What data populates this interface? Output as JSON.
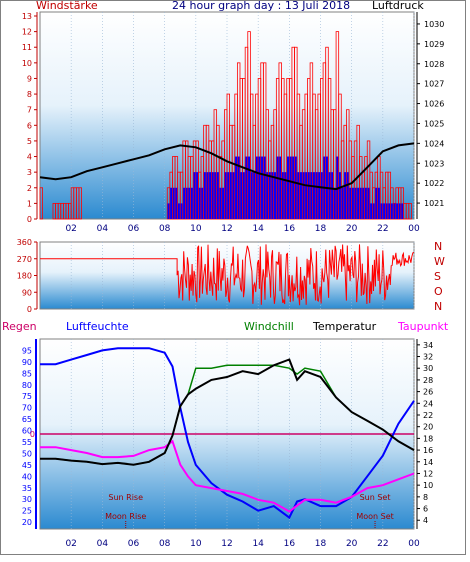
{
  "header": {
    "windstaerke": "Windstärke",
    "title": "24 hour graph day : 13 Juli 2018",
    "luftdruck": "Luftdruck",
    "regen": "Regen",
    "luftfeuchte": "Luftfeuchte",
    "windchill": "Windchill",
    "temperatur": "Temperatur",
    "taupunkt": "Taupunkt"
  },
  "colors": {
    "wind_axis": "#c00000",
    "wind_bars": "#ff0000",
    "gust_bars": "#0000ff",
    "pressure_line": "#000000",
    "direction_line": "#ff0000",
    "humidity_line": "#0000ff",
    "temperature_line": "#000000",
    "windchill_line": "#008000",
    "dewpoint_line": "#ff00ff",
    "rain_zero_line": "#cc0066",
    "title_color": "#000080"
  },
  "chart_data": [
    {
      "type": "bar",
      "name": "wind",
      "x_ticks": [
        "02",
        "04",
        "06",
        "08",
        "10",
        "12",
        "14",
        "16",
        "18",
        "20",
        "22",
        "00"
      ],
      "y_left_ticks": [
        "0",
        "1",
        "2",
        "3",
        "4",
        "5",
        "6",
        "7",
        "8",
        "9",
        "10",
        "11",
        "12",
        "13"
      ],
      "ylim_left": [
        0,
        13
      ],
      "y_right_ticks": [
        "1021",
        "1022",
        "1023",
        "1024",
        "1025",
        "1026",
        "1027",
        "1028",
        "1029",
        "1030"
      ],
      "ylim_right": [
        1020.2,
        1030.6
      ],
      "wind_hours": [
        0.0,
        0.2,
        2.5,
        2.6,
        8.0,
        8.1,
        8.5,
        9.0,
        9.2,
        9.5,
        10.0,
        10.2,
        10.5,
        11.0,
        11.2,
        11.5,
        12.0,
        12.3,
        12.6,
        13.0,
        13.3,
        13.6,
        14.0,
        14.3,
        14.6,
        15.0,
        15.3,
        15.6,
        16.0,
        16.3,
        16.6,
        17.0,
        17.3,
        17.6,
        18.0,
        18.3,
        18.6,
        18.8,
        19.0,
        19.3,
        19.6,
        20.0,
        20.3,
        20.6,
        21.0,
        21.3,
        21.6,
        22.0,
        22.3,
        22.6,
        23.0,
        23.5,
        24.0
      ],
      "wind_values": [
        2,
        0,
        2,
        0,
        0,
        1,
        4,
        3,
        5,
        4,
        5,
        3,
        6,
        5,
        7,
        4,
        8,
        5,
        10,
        9,
        13,
        6,
        9,
        11,
        5,
        7,
        10,
        8,
        9,
        12,
        6,
        8,
        10,
        7,
        9,
        11,
        8,
        6,
        12,
        5,
        7,
        4,
        6,
        3,
        5,
        2,
        4,
        2,
        3,
        1,
        2,
        1,
        0
      ],
      "gust_values": [
        0,
        0,
        0,
        0,
        0,
        1,
        2,
        1,
        2,
        2,
        3,
        2,
        3,
        3,
        3,
        2,
        3,
        3,
        4,
        3,
        4,
        3,
        4,
        4,
        3,
        3,
        4,
        3,
        4,
        4,
        3,
        3,
        3,
        3,
        3,
        4,
        3,
        2,
        4,
        2,
        3,
        2,
        2,
        2,
        2,
        1,
        2,
        1,
        1,
        1,
        1,
        0,
        0
      ],
      "pressure_hours": [
        0,
        1,
        2,
        3,
        4,
        5,
        6,
        7,
        8,
        9,
        10,
        11,
        12,
        13,
        14,
        15,
        16,
        17,
        18,
        19,
        20,
        21,
        22,
        23,
        24
      ],
      "pressure_values": [
        1022.3,
        1022.2,
        1022.3,
        1022.6,
        1022.8,
        1023.0,
        1023.2,
        1023.4,
        1023.7,
        1023.9,
        1023.8,
        1023.5,
        1023.1,
        1022.8,
        1022.5,
        1022.3,
        1022.1,
        1021.9,
        1021.8,
        1021.7,
        1022.0,
        1022.8,
        1023.6,
        1023.9,
        1024.0
      ]
    },
    {
      "type": "line",
      "name": "wind_direction",
      "y_left_ticks": [
        "0",
        "90",
        "180",
        "270",
        "360"
      ],
      "y_right_labels": [
        "N",
        "W",
        "S",
        "O",
        "N"
      ],
      "ylim": [
        0,
        360
      ],
      "hours": [
        0,
        8.8,
        8.9,
        9.2,
        9.5,
        10,
        10.5,
        11,
        11.5,
        12,
        12.5,
        13,
        13.5,
        14,
        14.5,
        15,
        15.5,
        16,
        16.5,
        17,
        17.5,
        18,
        18.5,
        19,
        19.5,
        20,
        20.5,
        21,
        21.5,
        22,
        22.5,
        23,
        23.5,
        24
      ],
      "values": [
        270,
        270,
        30,
        200,
        60,
        300,
        100,
        250,
        40,
        330,
        80,
        280,
        120,
        340,
        60,
        300,
        90,
        260,
        50,
        310,
        70,
        230,
        40,
        290,
        110,
        330,
        60,
        270,
        100,
        300,
        250,
        260,
        280,
        270
      ]
    },
    {
      "type": "line",
      "name": "temperature_humidity",
      "y_humidity_ticks": [
        "20",
        "25",
        "30",
        "35",
        "40",
        "45",
        "50",
        "55",
        "60",
        "65",
        "70",
        "75",
        "80",
        "85",
        "90",
        "95"
      ],
      "ylim_humidity": [
        17,
        100
      ],
      "y_temperature_ticks": [
        "4",
        "6",
        "8",
        "10",
        "12",
        "14",
        "16",
        "18",
        "20",
        "22",
        "24",
        "26",
        "28",
        "30",
        "32",
        "34"
      ],
      "ylim_temperature": [
        2.5,
        35
      ],
      "rain_label": "0",
      "rain_value": 0,
      "sun_rise_label": "Sun Rise",
      "sun_set_label": "Sun Set",
      "moon_rise_label": "Moon Rise",
      "moon_set_label": "Moon Set",
      "sun_rise_hour": 5.5,
      "sun_set_hour": 21.5,
      "moon_rise_hour": 5.5,
      "moon_set_hour": 21.5,
      "hours": [
        0,
        1,
        2,
        3,
        4,
        5,
        6,
        7,
        8,
        8.5,
        9,
        9.5,
        10,
        11,
        12,
        13,
        14,
        15,
        16,
        16.5,
        17,
        18,
        19,
        20,
        21,
        22,
        23,
        24
      ],
      "humidity": [
        89,
        89,
        91,
        93,
        95,
        96,
        96,
        96,
        94,
        88,
        70,
        55,
        45,
        37,
        32,
        29,
        25,
        27,
        22,
        29,
        30,
        27,
        27,
        31,
        40,
        49,
        63,
        73
      ],
      "temperature": [
        14.5,
        14.5,
        14.2,
        14.0,
        13.6,
        13.8,
        13.5,
        14.0,
        15.5,
        18.5,
        23.5,
        25.5,
        26.5,
        28.0,
        28.5,
        29.5,
        29.0,
        30.5,
        31.5,
        28.0,
        29.5,
        28.5,
        25.0,
        22.5,
        21.0,
        19.5,
        17.5,
        16.0
      ],
      "windchill": [
        14.5,
        14.5,
        14.2,
        14.0,
        13.6,
        13.8,
        13.5,
        14.0,
        15.5,
        18.5,
        23.5,
        25.5,
        30.0,
        30.0,
        30.5,
        30.5,
        30.5,
        30.5,
        30.0,
        29.0,
        30.0,
        29.5,
        25.0,
        22.5,
        21.0,
        19.5,
        17.5,
        16.0
      ],
      "dewpoint": [
        16.5,
        16.5,
        16.0,
        15.5,
        14.8,
        14.8,
        15.0,
        16.0,
        16.5,
        17.5,
        13.5,
        11.5,
        10.0,
        9.5,
        9.0,
        8.5,
        7.5,
        7.0,
        5.5,
        6.5,
        7.5,
        7.5,
        7.0,
        8.0,
        9.5,
        10.0,
        11.0,
        12.0
      ]
    }
  ]
}
